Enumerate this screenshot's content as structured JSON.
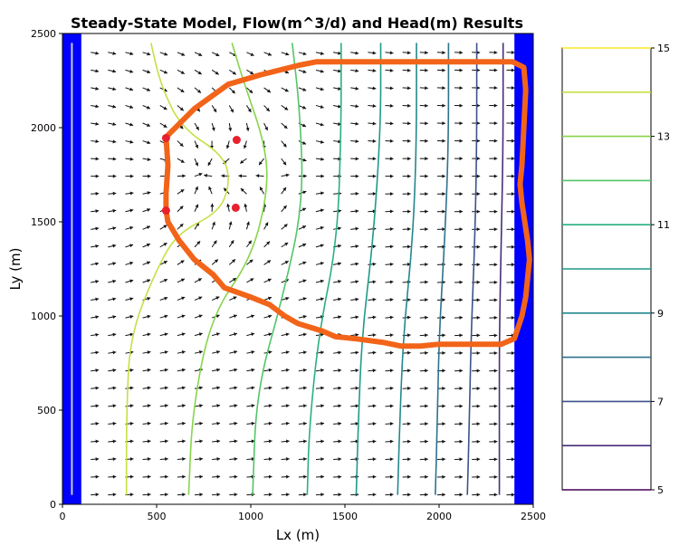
{
  "chart_data": [
    {
      "type": "contour",
      "title": "Steady-State Model, Flow(m^3/d) and Head(m) Results",
      "xlabel": "Lx (m)",
      "ylabel": "Ly (m)",
      "xlim": [
        0,
        2500
      ],
      "ylim": [
        0,
        2500
      ],
      "xticks": [
        "0",
        "500",
        "1000",
        "1500",
        "2000",
        "2500"
      ],
      "yticks": [
        "0",
        "500",
        "1000",
        "1500",
        "2000",
        "2500"
      ],
      "grid": false,
      "boundaries": [
        {
          "kind": "constant-head",
          "x_range": [
            0,
            100
          ],
          "color": "#0000ff"
        },
        {
          "kind": "constant-head",
          "x_range": [
            2400,
            2500
          ],
          "color": "#0000ff"
        }
      ],
      "well_line": {
        "x": 50,
        "y_range": [
          50,
          2450
        ],
        "color": "#c9c9c9"
      },
      "head_contours": [
        {
          "level": 14,
          "color": "#c5e044",
          "points": [
            [
              470,
              2450
            ],
            [
              520,
              2230
            ],
            [
              630,
              2000
            ],
            [
              860,
              1850
            ],
            [
              890,
              1700
            ],
            [
              830,
              1550
            ],
            [
              610,
              1440
            ],
            [
              500,
              1250
            ],
            [
              360,
              900
            ],
            [
              340,
              500
            ],
            [
              340,
              50
            ]
          ]
        },
        {
          "level": 13,
          "color": "#86d549",
          "points": [
            [
              900,
              2450
            ],
            [
              960,
              2250
            ],
            [
              1080,
              1900
            ],
            [
              1090,
              1650
            ],
            [
              1000,
              1300
            ],
            [
              790,
              1000
            ],
            [
              690,
              500
            ],
            [
              670,
              50
            ]
          ]
        },
        {
          "level": 12,
          "color": "#52c569",
          "points": [
            [
              1220,
              2450
            ],
            [
              1260,
              2100
            ],
            [
              1280,
              1600
            ],
            [
              1170,
              1100
            ],
            [
              1030,
              600
            ],
            [
              1010,
              50
            ]
          ]
        },
        {
          "level": 11,
          "color": "#2ab07f",
          "points": [
            [
              1480,
              2450
            ],
            [
              1480,
              2000
            ],
            [
              1460,
              1400
            ],
            [
              1360,
              900
            ],
            [
              1310,
              400
            ],
            [
              1300,
              50
            ]
          ]
        },
        {
          "level": 10,
          "color": "#1f9a8a",
          "points": [
            [
              1690,
              2450
            ],
            [
              1690,
              2000
            ],
            [
              1650,
              1400
            ],
            [
              1590,
              900
            ],
            [
              1570,
              400
            ],
            [
              1560,
              50
            ]
          ]
        },
        {
          "level": 9,
          "color": "#23888e",
          "points": [
            [
              1880,
              2450
            ],
            [
              1880,
              1900
            ],
            [
              1860,
              1400
            ],
            [
              1810,
              900
            ],
            [
              1790,
              400
            ],
            [
              1780,
              50
            ]
          ]
        },
        {
          "level": 8,
          "color": "#2c728e",
          "points": [
            [
              2050,
              2450
            ],
            [
              2050,
              1900
            ],
            [
              2030,
              1400
            ],
            [
              2000,
              900
            ],
            [
              1990,
              400
            ],
            [
              1980,
              50
            ]
          ]
        },
        {
          "level": 7,
          "color": "#3b528b",
          "points": [
            [
              2200,
              2450
            ],
            [
              2200,
              1900
            ],
            [
              2190,
              1400
            ],
            [
              2170,
              900
            ],
            [
              2160,
              400
            ],
            [
              2150,
              50
            ]
          ]
        },
        {
          "level": 6,
          "color": "#472d7b",
          "points": [
            [
              2340,
              2450
            ],
            [
              2340,
              1900
            ],
            [
              2330,
              1400
            ],
            [
              2320,
              900
            ],
            [
              2320,
              400
            ],
            [
              2320,
              50
            ]
          ]
        }
      ],
      "pathline": {
        "color": "#f26419",
        "points": [
          [
            550,
            1950
          ],
          [
            700,
            2100
          ],
          [
            880,
            2230
          ],
          [
            1050,
            2280
          ],
          [
            1250,
            2330
          ],
          [
            1350,
            2350
          ],
          [
            1500,
            2350
          ],
          [
            2000,
            2350
          ],
          [
            2390,
            2350
          ],
          [
            2450,
            2320
          ],
          [
            2460,
            2200
          ],
          [
            2450,
            2000
          ],
          [
            2440,
            1800
          ],
          [
            2430,
            1700
          ],
          [
            2440,
            1600
          ],
          [
            2470,
            1400
          ],
          [
            2480,
            1300
          ],
          [
            2460,
            1100
          ],
          [
            2440,
            1000
          ],
          [
            2400,
            880
          ],
          [
            2330,
            850
          ],
          [
            2000,
            850
          ],
          [
            1900,
            840
          ],
          [
            1800,
            840
          ],
          [
            1700,
            860
          ],
          [
            1550,
            880
          ],
          [
            1450,
            890
          ],
          [
            1380,
            920
          ],
          [
            1250,
            960
          ],
          [
            1180,
            1000
          ],
          [
            1100,
            1060
          ],
          [
            1000,
            1100
          ],
          [
            860,
            1150
          ],
          [
            800,
            1220
          ],
          [
            700,
            1300
          ],
          [
            620,
            1400
          ],
          [
            560,
            1500
          ],
          [
            550,
            1560
          ],
          [
            550,
            1650
          ],
          [
            560,
            1800
          ],
          [
            550,
            1950
          ]
        ]
      },
      "wells": [
        {
          "x": 550,
          "y": 1945,
          "color": "#e8212e"
        },
        {
          "x": 925,
          "y": 1935,
          "color": "#e8212e"
        },
        {
          "x": 550,
          "y": 1560,
          "color": "#e8212e"
        },
        {
          "x": 920,
          "y": 1575,
          "color": "#e8212e"
        }
      ],
      "pumping_center": [
        720,
        1750
      ]
    },
    {
      "type": "colorbar",
      "vmin": 5,
      "vmax": 15,
      "tick_labels": [
        "5",
        "7",
        "9",
        "11",
        "13",
        "15"
      ],
      "levels": [
        {
          "value": 5,
          "color": "#440154"
        },
        {
          "value": 6,
          "color": "#472d7b"
        },
        {
          "value": 7,
          "color": "#3b528b"
        },
        {
          "value": 8,
          "color": "#2c728e"
        },
        {
          "value": 9,
          "color": "#23888e"
        },
        {
          "value": 10,
          "color": "#1f9a8a"
        },
        {
          "value": 11,
          "color": "#2ab07f"
        },
        {
          "value": 12,
          "color": "#52c569"
        },
        {
          "value": 13,
          "color": "#86d549"
        },
        {
          "value": 14,
          "color": "#c5e044"
        },
        {
          "value": 15,
          "color": "#fde725"
        }
      ]
    }
  ]
}
